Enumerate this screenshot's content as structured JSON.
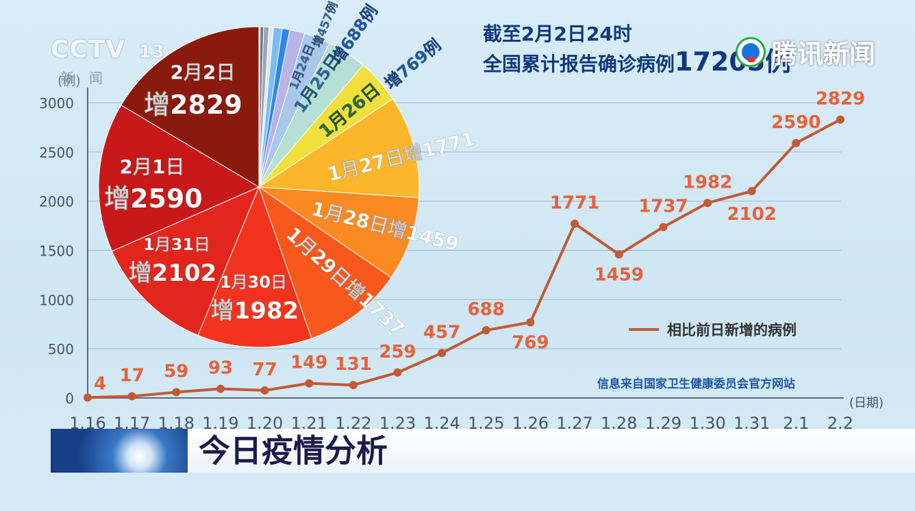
{
  "headline": {
    "line1": "截至2月2日24时",
    "line2": "全国累计报告确诊病例",
    "total": "17205例"
  },
  "logos": {
    "broadcaster": "CCTV",
    "channel": "13",
    "channel_sub": "新闻",
    "watermark": "腾讯新闻"
  },
  "banner": {
    "title": "今日疫情分析"
  },
  "source": "信息来自国家卫生健康委员会官方网站",
  "chart_data": [
    {
      "type": "line",
      "x": [
        "1.16",
        "1.17",
        "1.18",
        "1.19",
        "1.20",
        "1.21",
        "1.22",
        "1.23",
        "1.24",
        "1.25",
        "1.26",
        "1.27",
        "1.28",
        "1.29",
        "1.30",
        "1.31",
        "2.1",
        "2.2"
      ],
      "series": [
        {
          "name": "相比前日新增的病例",
          "values": [
            4,
            17,
            59,
            93,
            77,
            149,
            131,
            259,
            457,
            688,
            769,
            1771,
            1459,
            1737,
            1982,
            2102,
            2590,
            2829
          ]
        }
      ],
      "ylabel": "(例)",
      "xlabel": "(日期)",
      "yticks": [
        0,
        500,
        1000,
        1500,
        2000,
        2500,
        3000
      ],
      "ylim": [
        0,
        3000
      ],
      "grid": true,
      "legend": "right-middle",
      "line_color": "#c25a34",
      "label_color": "#e8613a"
    },
    {
      "type": "pie",
      "slices": [
        {
          "label": "2月2日",
          "sub": "增2829",
          "value": 2829,
          "color": "#8b1a0e"
        },
        {
          "label": "2月1日",
          "sub": "增2590",
          "value": 2590,
          "color": "#c8181a"
        },
        {
          "label": "1月31日",
          "sub": "增2102",
          "value": 2102,
          "color": "#e2261e"
        },
        {
          "label": "1月30日",
          "sub": "增1982",
          "value": 1982,
          "color": "#f2341e"
        },
        {
          "label": "1月29日增1737",
          "value": 1737,
          "color": "#f8581c"
        },
        {
          "label": "1月28日增1459",
          "value": 1459,
          "color": "#fb8a22"
        },
        {
          "label": "1月27日增1771",
          "value": 1771,
          "color": "#fcb62a"
        },
        {
          "label": "1月26日",
          "value": 769,
          "color": "#f1e03c",
          "outer": "增769例"
        },
        {
          "label": "1月25日",
          "value": 688,
          "color": "#b6e0d6",
          "outer": "增688例"
        },
        {
          "label": "1月24日",
          "value": 457,
          "color": "#a9c7ea",
          "outer": "增457例"
        },
        {
          "label": "",
          "value": 259,
          "color": "#b8b4e8"
        },
        {
          "label": "",
          "value": 131,
          "color": "#2f86e6"
        },
        {
          "label": "",
          "value": 149,
          "color": "#7bbcf4"
        },
        {
          "label": "",
          "value": 77,
          "color": "#dfe6ee"
        },
        {
          "label": "",
          "value": 93,
          "color": "#9aa6b2"
        },
        {
          "label": "",
          "value": 59,
          "color": "#6b7884"
        },
        {
          "label": "",
          "value": 17,
          "color": "#d7dfe7"
        },
        {
          "label": "",
          "value": 4,
          "color": "#5a5a5a"
        }
      ]
    }
  ]
}
